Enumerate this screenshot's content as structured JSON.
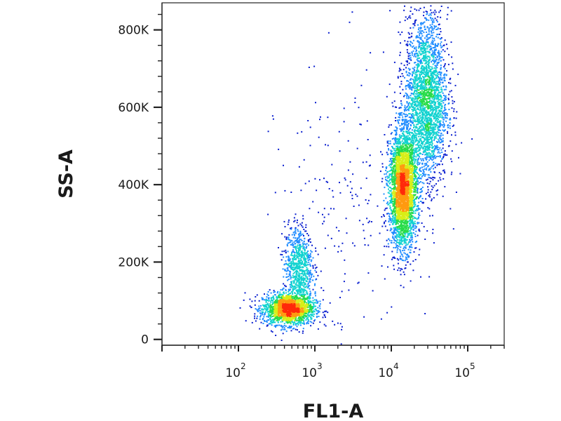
{
  "chart_data": {
    "type": "scatter",
    "subtype": "flow-cytometry-density-dot-plot",
    "xlabel": "FL1-A",
    "ylabel": "SS-A",
    "x_scale": "log",
    "y_scale": "linear",
    "xlim": [
      10,
      300000
    ],
    "ylim": [
      -15000,
      870000
    ],
    "x_ticks": [
      {
        "value": 100,
        "base": "10",
        "exp": "2"
      },
      {
        "value": 1000,
        "base": "10",
        "exp": "3"
      },
      {
        "value": 10000,
        "base": "10",
        "exp": "4"
      },
      {
        "value": 100000,
        "base": "10",
        "exp": "5"
      }
    ],
    "y_ticks": [
      {
        "value": 0,
        "label": "0"
      },
      {
        "value": 200000,
        "label": "200K"
      },
      {
        "value": 400000,
        "label": "400K"
      },
      {
        "value": 600000,
        "label": "600K"
      },
      {
        "value": 800000,
        "label": "800K"
      }
    ],
    "grid": false,
    "legend": "none",
    "density_colors": [
      "#0a1fcf",
      "#1f8cff",
      "#12d3d0",
      "#28dc4a",
      "#d8ee18",
      "#ff9a10",
      "#ff2a0a"
    ],
    "populations": [
      {
        "center_x": 450,
        "center_y": 80000,
        "spread_log_x": 0.17,
        "spread_y": 20000,
        "points": 1900
      },
      {
        "center_x": 600,
        "center_y": 190000,
        "spread_log_x": 0.09,
        "spread_y": 55000,
        "points": 800
      },
      {
        "center_x": 14000,
        "center_y": 390000,
        "spread_log_x": 0.09,
        "spread_y": 75000,
        "points": 3300
      },
      {
        "center_x": 28000,
        "center_y": 620000,
        "spread_log_x": 0.14,
        "spread_y": 110000,
        "points": 2600
      },
      {
        "center_x": 2500,
        "center_y": 300000,
        "spread_log_x": 0.45,
        "spread_y": 200000,
        "points": 220
      }
    ]
  }
}
